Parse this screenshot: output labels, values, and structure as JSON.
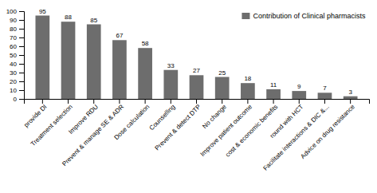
{
  "chart_data": {
    "type": "bar",
    "categories": [
      "provide DI",
      "Treatment selection",
      "Improve RDU",
      "Prevent & manage SE & ADR",
      "Dose calculation",
      "Counselling",
      "Prevent & detect DTP",
      "No change",
      "Improve patient outcome",
      "cost & economic benefits",
      "round with HCT",
      "Facilitate interactions & DIC &...",
      "Advice on drug resistance"
    ],
    "series": [
      {
        "name": "Contribution of Clinical pharmacists",
        "color": "#6d6d6d",
        "values": [
          95,
          88,
          85,
          67,
          58,
          33,
          27,
          25,
          18,
          11,
          9,
          7,
          3
        ]
      }
    ],
    "ylim": [
      0,
      100
    ],
    "yticks": [
      0,
      10,
      20,
      30,
      40,
      50,
      60,
      70,
      80,
      90,
      100
    ],
    "data_labels": true,
    "grid": false,
    "legend": "upper right"
  }
}
